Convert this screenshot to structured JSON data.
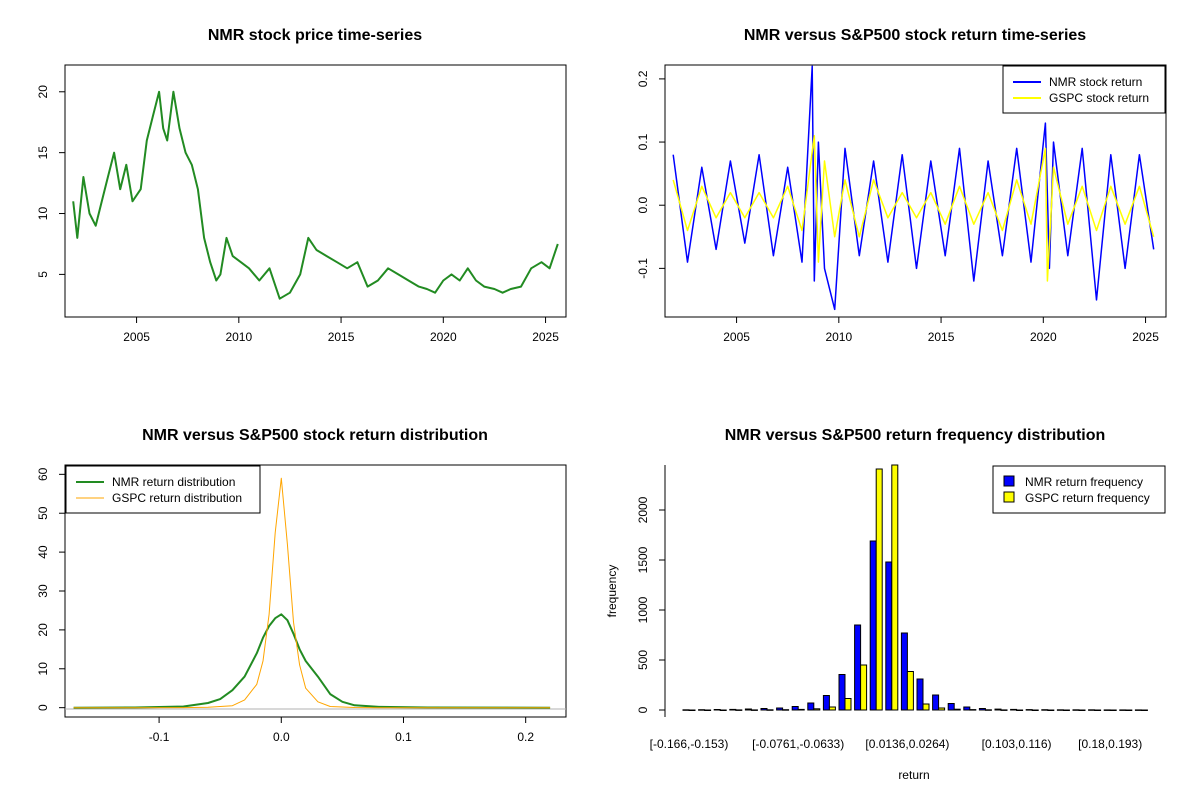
{
  "chart_data": [
    {
      "id": "p1",
      "type": "line",
      "title": "NMR stock price time-series",
      "xlabel": "",
      "ylabel": "",
      "xlim": [
        2001.5,
        2026.0
      ],
      "ylim": [
        1.5,
        22.2
      ],
      "xticks": [
        2005,
        2010,
        2015,
        2020,
        2025
      ],
      "xtick_labels": [
        "2005",
        "2010",
        "2015",
        "2020",
        "2025"
      ],
      "yticks": [
        5,
        10,
        15,
        20
      ],
      "ytick_labels": [
        "5",
        "10",
        "15",
        "20"
      ],
      "series": [
        {
          "name": "NMR",
          "color": "#228B22",
          "x": [
            2001.9,
            2002.1,
            2002.4,
            2002.7,
            2003.0,
            2003.3,
            2003.6,
            2003.9,
            2004.2,
            2004.5,
            2004.8,
            2005.2,
            2005.5,
            2005.8,
            2006.1,
            2006.3,
            2006.5,
            2006.8,
            2007.1,
            2007.4,
            2007.7,
            2008.0,
            2008.3,
            2008.6,
            2008.9,
            2009.1,
            2009.4,
            2009.7,
            2010.1,
            2010.5,
            2011.0,
            2011.5,
            2012.0,
            2012.5,
            2013.0,
            2013.4,
            2013.8,
            2014.3,
            2014.8,
            2015.3,
            2015.8,
            2016.3,
            2016.8,
            2017.3,
            2017.8,
            2018.3,
            2018.8,
            2019.2,
            2019.6,
            2020.0,
            2020.4,
            2020.8,
            2021.2,
            2021.6,
            2022.0,
            2022.5,
            2022.9,
            2023.3,
            2023.8,
            2024.3,
            2024.8,
            2025.2,
            2025.6
          ],
          "y": [
            11,
            8,
            13,
            10,
            9,
            11,
            13,
            15,
            12,
            14,
            11,
            12,
            16,
            18,
            20,
            17,
            16,
            20,
            17,
            15,
            14,
            12,
            8,
            6,
            4.5,
            5,
            8,
            6.5,
            6,
            5.5,
            4.5,
            5.5,
            3,
            3.5,
            5,
            8,
            7,
            6.5,
            6,
            5.5,
            6,
            4,
            4.5,
            5.5,
            5,
            4.5,
            4,
            3.8,
            3.5,
            4.5,
            5,
            4.5,
            5.5,
            4.5,
            4,
            3.8,
            3.5,
            3.8,
            4,
            5.5,
            6,
            5.5,
            7.5
          ]
        }
      ]
    },
    {
      "id": "p2",
      "type": "line",
      "title": "NMR versus S&P500 stock return time-series",
      "xlabel": "",
      "ylabel": "",
      "xlim": [
        2001.5,
        2026.0
      ],
      "ylim": [
        -0.177,
        0.222
      ],
      "xticks": [
        2005,
        2010,
        2015,
        2020,
        2025
      ],
      "xtick_labels": [
        "2005",
        "2010",
        "2015",
        "2020",
        "2025"
      ],
      "yticks": [
        -0.1,
        0.0,
        0.1,
        0.2
      ],
      "ytick_labels": [
        "-0.1",
        "0.0",
        "0.1",
        "0.2"
      ],
      "legend": {
        "position": "top-right",
        "entries": [
          "NMR stock return",
          "GSPC stock return"
        ],
        "colors": [
          "#0000FF",
          "#FFFF00"
        ]
      },
      "series": [
        {
          "name": "NMR stock return",
          "color": "#0000FF",
          "x": [
            2001.9,
            2002.6,
            2003.3,
            2004.0,
            2004.7,
            2005.4,
            2006.1,
            2006.8,
            2007.5,
            2008.2,
            2008.7,
            2008.8,
            2009.0,
            2009.3,
            2009.8,
            2010.3,
            2011.0,
            2011.7,
            2012.4,
            2013.1,
            2013.8,
            2014.5,
            2015.2,
            2015.9,
            2016.6,
            2017.3,
            2018.0,
            2018.7,
            2019.4,
            2020.1,
            2020.3,
            2020.5,
            2021.2,
            2021.9,
            2022.6,
            2023.3,
            2024.0,
            2024.7,
            2025.4
          ],
          "y": [
            0.08,
            -0.09,
            0.06,
            -0.07,
            0.07,
            -0.06,
            0.08,
            -0.08,
            0.06,
            -0.09,
            0.22,
            -0.12,
            0.1,
            -0.1,
            -0.165,
            0.09,
            -0.08,
            0.07,
            -0.09,
            0.08,
            -0.1,
            0.07,
            -0.08,
            0.09,
            -0.12,
            0.07,
            -0.08,
            0.09,
            -0.09,
            0.13,
            -0.1,
            0.1,
            -0.08,
            0.09,
            -0.15,
            0.08,
            -0.1,
            0.08,
            -0.07
          ]
        },
        {
          "name": "GSPC stock return",
          "color": "#FFFF00",
          "x": [
            2001.9,
            2002.6,
            2003.3,
            2004.0,
            2004.7,
            2005.4,
            2006.1,
            2006.8,
            2007.5,
            2008.2,
            2008.8,
            2009.0,
            2009.3,
            2009.8,
            2010.3,
            2011.0,
            2011.7,
            2012.4,
            2013.1,
            2013.8,
            2014.5,
            2015.2,
            2015.9,
            2016.6,
            2017.3,
            2018.0,
            2018.7,
            2019.4,
            2020.1,
            2020.2,
            2020.5,
            2021.2,
            2021.9,
            2022.6,
            2023.3,
            2024.0,
            2024.7,
            2025.4
          ],
          "y": [
            0.04,
            -0.04,
            0.03,
            -0.02,
            0.02,
            -0.02,
            0.02,
            -0.02,
            0.03,
            -0.04,
            0.11,
            -0.09,
            0.07,
            -0.05,
            0.04,
            -0.05,
            0.04,
            -0.02,
            0.02,
            -0.02,
            0.02,
            -0.03,
            0.03,
            -0.03,
            0.02,
            -0.04,
            0.04,
            -0.03,
            0.09,
            -0.12,
            0.06,
            -0.03,
            0.03,
            -0.04,
            0.03,
            -0.03,
            0.03,
            -0.05
          ]
        }
      ]
    },
    {
      "id": "p3",
      "type": "line",
      "title": "NMR versus S&P500 stock return distribution",
      "xlabel": "",
      "ylabel": "",
      "xlim": [
        -0.177,
        0.233
      ],
      "ylim": [
        -2.4,
        62.4
      ],
      "xticks": [
        -0.1,
        0.0,
        0.1,
        0.2
      ],
      "xtick_labels": [
        "-0.1",
        "0.0",
        "0.1",
        "0.2"
      ],
      "yticks": [
        0,
        10,
        20,
        30,
        40,
        50,
        60
      ],
      "ytick_labels": [
        "0",
        "10",
        "20",
        "30",
        "40",
        "50",
        "60"
      ],
      "legend": {
        "position": "top-left",
        "entries": [
          "NMR return distribution",
          "GSPC return distribution"
        ],
        "colors": [
          "#228B22",
          "#FFA500"
        ]
      },
      "series": [
        {
          "name": "NMR return distribution",
          "color": "#228B22",
          "x": [
            -0.17,
            -0.12,
            -0.08,
            -0.06,
            -0.05,
            -0.04,
            -0.03,
            -0.02,
            -0.015,
            -0.01,
            -0.005,
            0.0,
            0.005,
            0.01,
            0.015,
            0.02,
            0.03,
            0.04,
            0.05,
            0.06,
            0.08,
            0.12,
            0.22
          ],
          "y": [
            0,
            0.05,
            0.3,
            1.2,
            2.2,
            4.5,
            8,
            14,
            18,
            21,
            23,
            24,
            22.5,
            19,
            15,
            12,
            8,
            3.5,
            1.5,
            0.6,
            0.2,
            0.05,
            0
          ]
        },
        {
          "name": "GSPC return distribution",
          "color": "#FFA500",
          "x": [
            -0.17,
            -0.12,
            -0.08,
            -0.06,
            -0.04,
            -0.03,
            -0.02,
            -0.015,
            -0.01,
            -0.005,
            0.0,
            0.005,
            0.01,
            0.015,
            0.02,
            0.03,
            0.04,
            0.06,
            0.08,
            0.12,
            0.22
          ],
          "y": [
            0,
            0,
            0.02,
            0.1,
            0.5,
            2,
            6,
            12,
            24,
            45,
            59,
            42,
            22,
            11,
            5,
            1.5,
            0.3,
            0.05,
            0,
            0,
            0
          ]
        }
      ]
    },
    {
      "id": "p4",
      "type": "bar",
      "title": "NMR versus S&P500 return frequency distribution",
      "xlabel": "return",
      "ylabel": "frequency",
      "ylim": [
        0,
        2450
      ],
      "yticks": [
        0,
        500,
        1000,
        1500,
        2000
      ],
      "ytick_labels": [
        "0",
        "500",
        "1000",
        "1500",
        "2000"
      ],
      "xtick_labels": [
        "[-0.166,-0.153)",
        "[-0.0761,-0.0633)",
        "[0.0136,0.0264)",
        "[0.103,0.116)",
        "[0.18,0.193)"
      ],
      "xtick_positions": [
        0,
        7,
        14,
        21,
        27
      ],
      "legend": {
        "position": "top-right",
        "entries": [
          "NMR return frequency",
          "GSPC return frequency"
        ],
        "colors": [
          "#0000FF",
          "#FFFF00"
        ]
      },
      "categories_count": 30,
      "series": [
        {
          "name": "NMR return frequency",
          "color": "#0000FF",
          "values": [
            2,
            3,
            5,
            6,
            10,
            15,
            20,
            35,
            70,
            145,
            355,
            850,
            1690,
            1480,
            770,
            310,
            150,
            65,
            30,
            15,
            9,
            6,
            4,
            3,
            2,
            2,
            2,
            1,
            1,
            1
          ]
        },
        {
          "name": "GSPC return frequency",
          "color": "#FFFF00",
          "values": [
            0,
            0,
            0,
            1,
            1,
            2,
            3,
            6,
            12,
            30,
            115,
            450,
            2410,
            2450,
            385,
            60,
            20,
            8,
            4,
            2,
            1,
            0,
            0,
            0,
            0,
            0,
            0,
            0,
            0,
            0
          ]
        }
      ]
    }
  ]
}
